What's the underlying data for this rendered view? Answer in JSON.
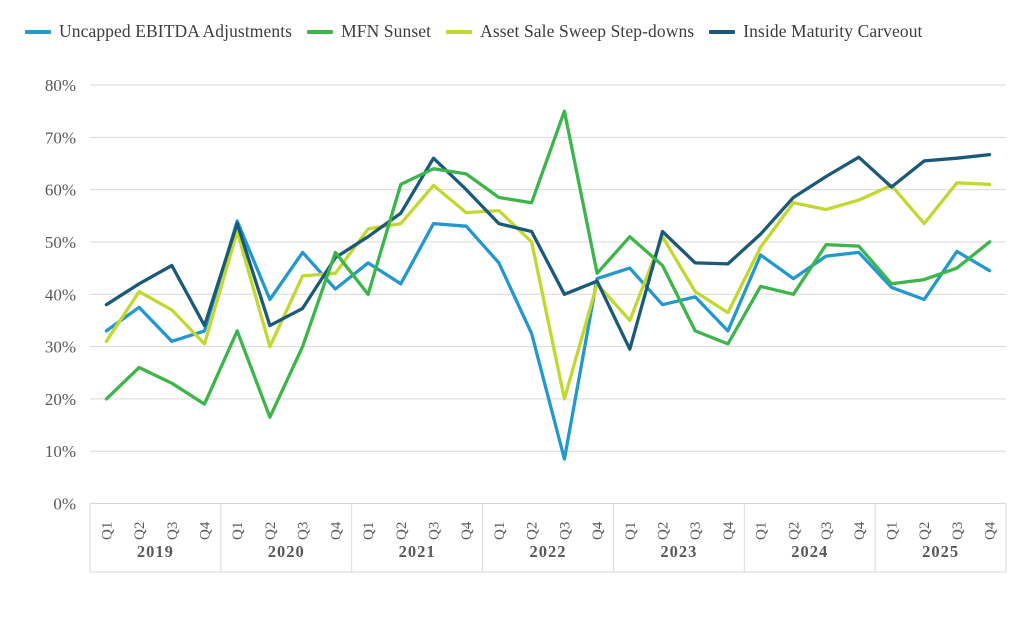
{
  "chart_data": {
    "type": "line",
    "title": "",
    "xlabel": "",
    "ylabel": "",
    "ylim": [
      0,
      80
    ],
    "grid": true,
    "legend_position": "top",
    "y_ticks": [
      "80%",
      "70%",
      "60%",
      "50%",
      "40%",
      "30%",
      "20%",
      "10%",
      "0%"
    ],
    "quarter_labels": [
      "Q1",
      "Q2",
      "Q3",
      "Q4"
    ],
    "years": [
      "2019",
      "2020",
      "2021",
      "2022",
      "2023",
      "2024",
      "2025"
    ],
    "series": [
      {
        "name": "Uncapped EBITDA Adjustments",
        "slug": "uncapped-ebitda-adjustments",
        "color": "#2398CE",
        "values": [
          33,
          37.5,
          31,
          33,
          54,
          39,
          48,
          41,
          46,
          42,
          53.5,
          53,
          46,
          32.5,
          8.5,
          43,
          45,
          38,
          39.5,
          33,
          47.5,
          43,
          47.3,
          48,
          41.3,
          39,
          48.2,
          44.5
        ]
      },
      {
        "name": "MFN Sunset",
        "slug": "mfn-sunset",
        "color": "#3CB54B",
        "values": [
          20,
          26,
          23,
          19,
          33,
          16.5,
          30,
          48,
          40,
          61,
          64,
          63,
          58.5,
          57.5,
          75,
          44,
          51,
          45.5,
          33,
          30.5,
          41.5,
          40,
          49.5,
          49.2,
          42,
          42.8,
          45,
          50
        ]
      },
      {
        "name": "Asset Sale Sweep Step-downs",
        "slug": "asset-sale-sweep-step-downs",
        "color": "#C3D82E",
        "values": [
          31,
          40.5,
          37,
          30.5,
          52,
          30,
          43.5,
          44,
          52.5,
          53.5,
          60.8,
          55.6,
          56,
          50,
          20,
          42,
          35,
          51,
          40.5,
          36.5,
          49,
          57.5,
          56.2,
          58,
          60.8,
          53.5,
          61.3,
          61
        ]
      },
      {
        "name": "Inside Maturity Carveout",
        "slug": "inside-maturity-carveout",
        "color": "#1A5A78",
        "values": [
          38,
          42,
          45.5,
          34,
          53.5,
          34,
          37.3,
          47,
          51,
          55.5,
          66,
          60,
          53.5,
          52,
          40,
          42.5,
          29.5,
          52,
          46,
          45.8,
          51.5,
          58.5,
          62.5,
          66.2,
          60.5,
          65.5,
          66,
          66.7
        ]
      }
    ],
    "colors": {
      "gridline": "#d9d9d9",
      "axis_divider": "#d9d9d9",
      "tick_text": "#595959",
      "legend_text": "#3d3d3d",
      "background": "#ffffff"
    }
  }
}
